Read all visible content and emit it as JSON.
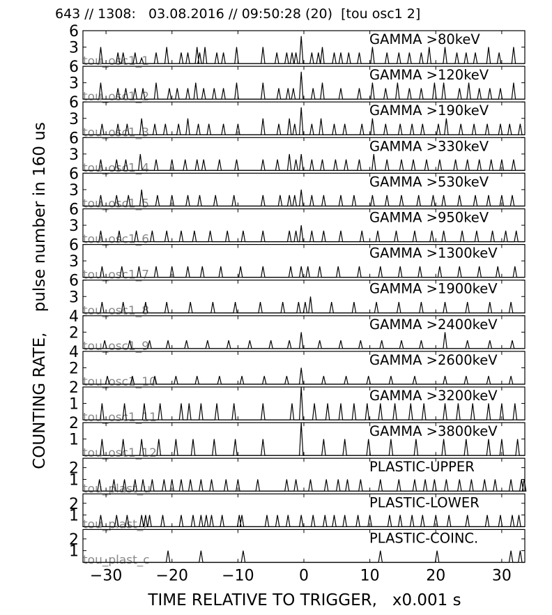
{
  "header": "643 // 1308:   03.08.2016 // 09:50:28 (20)  [tou osc1 2]",
  "ylabel": "COUNTING RATE,    pulse number in 160 us",
  "xlabel": "TIME RELATIVE TO TRIGGER,   x0.001 s",
  "chart_data": {
    "type": "line",
    "xlim": [
      -33.5,
      33.5
    ],
    "xticks": [
      -30,
      -20,
      -10,
      0,
      10,
      20,
      30
    ],
    "xtick_labels": [
      "−30",
      "−20",
      "−10",
      "0",
      "10",
      "20",
      "30"
    ],
    "panels": [
      {
        "title": "GAMMA >80keV",
        "tag": "tou_osc1_1",
        "ymax": 6,
        "yticks": [
          3,
          6
        ],
        "x": [
          -30.8,
          -28.2,
          -27.4,
          -25.6,
          -24.6,
          -22.4,
          -20.8,
          -18.6,
          -17.6,
          -16.2,
          -15.8,
          -15.0,
          -13.2,
          -12.2,
          -10.2,
          -6.2,
          -4.1,
          -2.6,
          -1.8,
          -1.2,
          -0.4,
          1.2,
          2.2,
          2.8,
          4.6,
          5.6,
          6.8,
          8.4,
          10.4,
          12.6,
          14.4,
          16.0,
          17.8,
          19.0,
          21.4,
          23.2,
          24.6,
          26.0,
          28.0,
          29.6,
          31.8
        ],
        "y": [
          3,
          2,
          2,
          2,
          1,
          2,
          3,
          2,
          2,
          3,
          2,
          3,
          2,
          2,
          3,
          3,
          2,
          2,
          2,
          2,
          5,
          2,
          2,
          3,
          2,
          2,
          2,
          2,
          3,
          2,
          2,
          2,
          2,
          3,
          3,
          2,
          2,
          2,
          3,
          2,
          3
        ]
      },
      {
        "title": "GAMMA >120keV",
        "tag": "tou_osc1_2",
        "ymax": 6,
        "yticks": [
          3,
          6
        ],
        "x": [
          -30.8,
          -28.2,
          -27.0,
          -25.6,
          -24.4,
          -22.4,
          -20.4,
          -19.2,
          -17.6,
          -16.4,
          -15.2,
          -13.6,
          -12.2,
          -10.2,
          -6.2,
          -3.8,
          -2.4,
          -1.6,
          -0.4,
          1.4,
          2.8,
          5.6,
          8.4,
          10.4,
          12.4,
          14.2,
          16.0,
          17.8,
          19.8,
          21.2,
          23.6,
          25.0,
          26.6,
          28.2,
          29.8,
          31.8
        ],
        "y": [
          3,
          2,
          2,
          2,
          2,
          3,
          2,
          2,
          2,
          3,
          2,
          2,
          2,
          3,
          3,
          2,
          2,
          2,
          5,
          2,
          3,
          2,
          2,
          3,
          2,
          3,
          2,
          2,
          3,
          3,
          2,
          3,
          2,
          2,
          2,
          3
        ]
      },
      {
        "title": "GAMMA >190keV",
        "tag": "tou_osc1_3",
        "ymax": 6,
        "yticks": [
          3,
          6
        ],
        "x": [
          -30.6,
          -28.2,
          -26.8,
          -24.6,
          -22.6,
          -21.0,
          -19.0,
          -17.6,
          -16.0,
          -14.4,
          -12.2,
          -10.0,
          -6.2,
          -3.8,
          -2.2,
          -1.4,
          -0.4,
          1.2,
          2.6,
          4.6,
          6.2,
          8.8,
          10.4,
          12.4,
          14.6,
          16.4,
          18.0,
          20.4,
          21.6,
          23.8,
          25.8,
          27.8,
          29.8,
          31.2,
          32.8
        ],
        "y": [
          2,
          2,
          2,
          3,
          2,
          2,
          2,
          3,
          2,
          2,
          2,
          2,
          3,
          2,
          3,
          2,
          5,
          2,
          3,
          2,
          2,
          2,
          3,
          2,
          2,
          2,
          2,
          2,
          3,
          2,
          2,
          2,
          2,
          2,
          2
        ]
      },
      {
        "title": "GAMMA >330keV",
        "tag": "tou_osc1_4",
        "ymax": 6,
        "yticks": [
          3,
          6
        ],
        "x": [
          -30.8,
          -28.4,
          -27.0,
          -24.8,
          -22.4,
          -20.0,
          -18.0,
          -16.2,
          -15.2,
          -12.8,
          -10.2,
          -6.2,
          -4.0,
          -2.2,
          -1.2,
          -0.4,
          1.2,
          2.8,
          4.8,
          6.4,
          8.4,
          10.6,
          12.6,
          14.8,
          16.6,
          18.6,
          20.6,
          23.0,
          24.8,
          26.6,
          28.4,
          30.0,
          31.8
        ],
        "y": [
          2,
          2,
          2,
          3,
          2,
          2,
          2,
          2,
          2,
          2,
          2,
          2,
          2,
          3,
          2,
          3,
          2,
          2,
          2,
          2,
          2,
          3,
          2,
          2,
          2,
          2,
          2,
          2,
          2,
          2,
          2,
          2,
          2
        ]
      },
      {
        "title": "GAMMA >530keV",
        "tag": "tou_osc1_5",
        "ymax": 6,
        "yticks": [
          3,
          6
        ],
        "x": [
          -30.8,
          -28.4,
          -26.6,
          -24.6,
          -22.2,
          -20.0,
          -17.6,
          -15.8,
          -13.4,
          -10.6,
          -6.2,
          -3.6,
          -2.2,
          -1.4,
          -0.4,
          1.2,
          3.0,
          5.6,
          7.6,
          10.4,
          12.6,
          14.8,
          17.4,
          19.6,
          21.2,
          23.6,
          26.0,
          28.0,
          30.0,
          31.6
        ],
        "y": [
          2,
          2,
          2,
          3,
          2,
          2,
          2,
          2,
          2,
          2,
          2,
          2,
          2,
          2,
          3,
          2,
          2,
          2,
          2,
          2,
          2,
          2,
          2,
          2,
          2,
          2,
          2,
          2,
          2,
          2
        ]
      },
      {
        "title": "GAMMA >950keV",
        "tag": "tou_osc1_6",
        "ymax": 6,
        "yticks": [
          3,
          6
        ],
        "x": [
          -30.8,
          -28.0,
          -25.4,
          -23.0,
          -20.8,
          -18.6,
          -16.6,
          -14.2,
          -11.6,
          -9.2,
          -6.2,
          -2.2,
          -1.2,
          -0.4,
          1.2,
          3.0,
          5.6,
          8.8,
          11.2,
          14.0,
          16.8,
          19.4,
          21.2,
          24.0,
          26.2,
          28.6,
          30.6,
          32.2
        ],
        "y": [
          2,
          2,
          2,
          2,
          2,
          2,
          2,
          2,
          2,
          2,
          2,
          2,
          2,
          3,
          2,
          2,
          2,
          2,
          2,
          2,
          2,
          2,
          2,
          2,
          2,
          2,
          2,
          2
        ]
      },
      {
        "title": "GAMMA >1300keV",
        "tag": "tou_osc1_7",
        "ymax": 6,
        "yticks": [
          3,
          6
        ],
        "x": [
          -30.6,
          -27.6,
          -25.0,
          -22.4,
          -20.0,
          -17.6,
          -15.4,
          -12.6,
          -9.6,
          -6.2,
          -2.0,
          -0.4,
          0.6,
          2.4,
          5.2,
          8.4,
          11.6,
          14.6,
          17.6,
          20.6,
          23.6,
          26.6,
          29.4,
          32.0
        ],
        "y": [
          2,
          2,
          2,
          2,
          2,
          2,
          2,
          2,
          2,
          2,
          2,
          2,
          2,
          2,
          2,
          2,
          2,
          2,
          2,
          2,
          2,
          2,
          2,
          2
        ]
      },
      {
        "title": "GAMMA >1900keV",
        "tag": "tou_osc1_8",
        "ymax": 6,
        "yticks": [
          3,
          6
        ],
        "x": [
          -30.6,
          -27.4,
          -24.0,
          -20.8,
          -17.2,
          -13.8,
          -10.4,
          -6.6,
          -3.2,
          -0.8,
          0.2,
          1.0,
          4.2,
          7.6,
          11.0,
          14.4,
          17.8,
          21.4,
          24.8,
          28.2,
          31.4
        ],
        "y": [
          2,
          2,
          2,
          2,
          2,
          2,
          2,
          2,
          2,
          2,
          2,
          3,
          2,
          2,
          2,
          2,
          2,
          2,
          2,
          2,
          2
        ]
      },
      {
        "title": "GAMMA >2400keV",
        "tag": "tou_osc1_9",
        "ymax": 4,
        "yticks": [
          2,
          4
        ],
        "x": [
          -30.2,
          -26.4,
          -23.4,
          -20.6,
          -17.8,
          -14.6,
          -11.4,
          -8.2,
          -5.0,
          -2.2,
          -0.4,
          2.4,
          5.6,
          8.6,
          11.8,
          14.8,
          17.8,
          21.4,
          24.8,
          28.2,
          31.6
        ],
        "y": [
          1,
          1,
          1,
          1,
          1,
          1,
          1,
          1,
          1,
          1,
          2,
          1,
          1,
          1,
          1,
          1,
          1,
          2,
          1,
          1,
          1
        ]
      },
      {
        "title": "GAMMA >2600keV",
        "tag": "tou_osc1_10",
        "ymax": 4,
        "yticks": [
          2,
          4
        ],
        "x": [
          -29.8,
          -26.0,
          -22.6,
          -19.4,
          -16.2,
          -12.8,
          -9.4,
          -6.0,
          -2.6,
          -0.4,
          3.0,
          6.4,
          9.8,
          13.2,
          16.8,
          21.4,
          24.6,
          28.0,
          31.4
        ],
        "y": [
          1,
          1,
          1,
          1,
          1,
          1,
          1,
          1,
          1,
          2,
          1,
          1,
          1,
          1,
          1,
          1,
          1,
          1,
          1
        ]
      },
      {
        "title": "GAMMA >3200keV",
        "tag": "tou_osc1_11",
        "ymax": 2,
        "yticks": [
          1,
          2
        ],
        "x": [
          -30.6,
          -27.2,
          -24.2,
          -21.8,
          -18.6,
          -17.4,
          -15.6,
          -13.2,
          -10.6,
          -6.2,
          -1.8,
          -0.4,
          1.6,
          3.6,
          5.6,
          7.6,
          9.6,
          11.6,
          13.8,
          16.2,
          18.2,
          21.4,
          23.4,
          25.6,
          28.0,
          30.0,
          32.0
        ],
        "y": [
          1,
          1,
          1,
          1,
          1,
          1,
          1,
          1,
          1,
          1,
          1,
          2,
          1,
          1,
          1,
          1,
          1,
          1,
          1,
          1,
          1,
          1,
          1,
          1,
          1,
          1,
          1
        ]
      },
      {
        "title": "GAMMA >3800keV",
        "tag": "tou_osc1_12",
        "ymax": 2,
        "yticks": [
          1,
          2
        ],
        "x": [
          -30.6,
          -27.4,
          -24.6,
          -22.0,
          -19.4,
          -16.8,
          -13.6,
          -10.4,
          -6.2,
          -0.4,
          3.0,
          6.2,
          9.8,
          13.2,
          17.0,
          21.2,
          24.6,
          28.0,
          30.0,
          32.4
        ],
        "y": [
          1,
          1,
          1,
          1,
          1,
          1,
          1,
          1,
          1,
          2,
          1,
          1,
          1,
          1,
          1,
          1,
          1,
          1,
          1,
          1
        ]
      },
      {
        "title": "PLASTIC-UPPER",
        "tag": "tou_plast_u",
        "ymax": 2.8,
        "yticks": [
          1,
          2
        ],
        "x": [
          -31.0,
          -28.8,
          -27.2,
          -25.6,
          -24.4,
          -23.0,
          -21.2,
          -20.0,
          -18.6,
          -17.2,
          -15.6,
          -14.0,
          -11.8,
          -10.0,
          -7.0,
          -2.6,
          -1.2,
          1.0,
          3.4,
          5.2,
          6.6,
          8.6,
          11.6,
          14.4,
          16.8,
          18.4,
          19.8,
          21.6,
          23.6,
          25.4,
          27.4,
          29.0,
          31.4,
          33.0,
          33.4
        ],
        "y": [
          1,
          1,
          1,
          1,
          1,
          1,
          1,
          1,
          1,
          1,
          1,
          1,
          1,
          1,
          1,
          1,
          1,
          1,
          1,
          1,
          1,
          1,
          1,
          1,
          1,
          1,
          1,
          1,
          1,
          1,
          1,
          1,
          1,
          1,
          1
        ]
      },
      {
        "title": "PLASTIC-LOWER",
        "tag": "tou_plast_l",
        "ymax": 2.8,
        "yticks": [
          1,
          2
        ],
        "x": [
          -30.8,
          -28.4,
          -26.8,
          -24.6,
          -24.0,
          -23.4,
          -21.4,
          -18.6,
          -16.8,
          -15.6,
          -14.8,
          -14.0,
          -12.4,
          -9.8,
          -9.4,
          -5.6,
          -4.0,
          -2.4,
          -0.4,
          1.4,
          3.2,
          4.6,
          6.2,
          8.2,
          10.0,
          13.0,
          14.6,
          16.4,
          18.0,
          20.0,
          22.0,
          24.8,
          27.8,
          29.8,
          31.6,
          32.6
        ],
        "y": [
          1,
          1,
          1,
          1,
          1,
          1,
          1,
          1,
          1,
          1,
          1,
          1,
          1,
          1,
          1,
          1,
          1,
          1,
          1,
          1,
          1,
          1,
          1,
          1,
          1,
          1,
          1,
          1,
          1,
          1,
          1,
          1,
          1,
          1,
          1,
          1
        ]
      },
      {
        "title": "PLASTIC-COINC.",
        "tag": "tou_plast_c",
        "ymax": 2.8,
        "yticks": [
          1,
          2
        ],
        "x": [
          -20.6,
          -15.6,
          -9.2,
          11.6,
          20.2,
          31.4,
          32.8
        ],
        "y": [
          1,
          1,
          1,
          1,
          1,
          1,
          1
        ]
      }
    ]
  }
}
